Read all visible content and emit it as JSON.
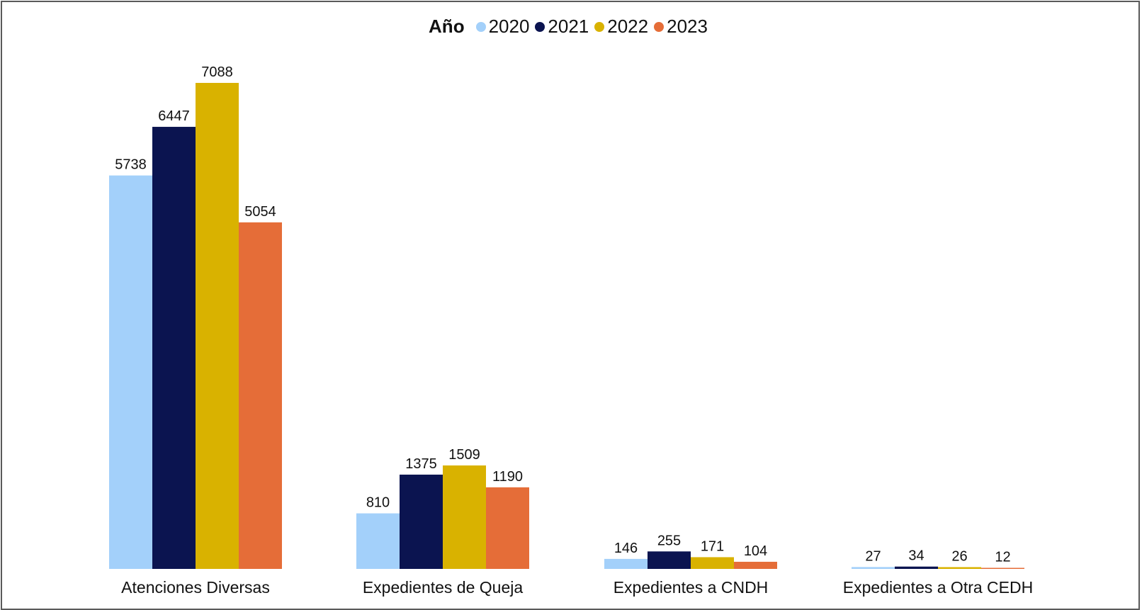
{
  "chart_data": {
    "type": "bar",
    "title": "",
    "legend_title": "Año",
    "legend_position": "top-center",
    "grid": false,
    "ylim": [
      0,
      7088
    ],
    "categories": [
      "Atenciones Diversas",
      "Expedientes de Queja",
      "Expedientes a CNDH",
      "Expedientes a Otra CEDH"
    ],
    "series": [
      {
        "name": "2020",
        "color": "#a3d0fa",
        "values": [
          5738,
          810,
          146,
          27
        ]
      },
      {
        "name": "2021",
        "color": "#0b1450",
        "values": [
          6447,
          1375,
          255,
          34
        ]
      },
      {
        "name": "2022",
        "color": "#d9b200",
        "values": [
          7088,
          1509,
          171,
          26
        ]
      },
      {
        "name": "2023",
        "color": "#e56d38",
        "values": [
          5054,
          1190,
          104,
          12
        ]
      }
    ]
  }
}
